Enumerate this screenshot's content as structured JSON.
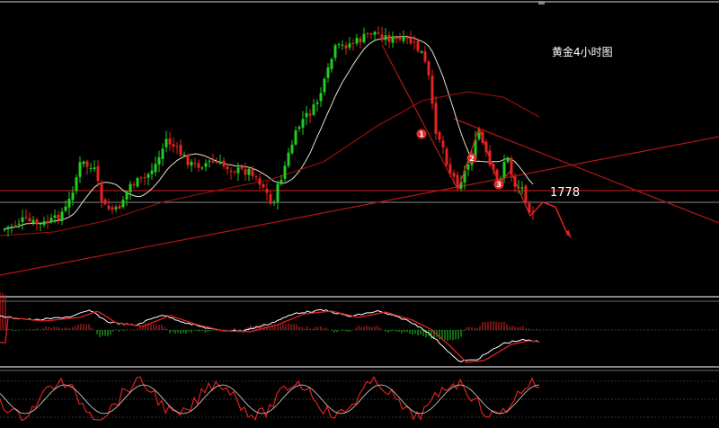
{
  "chart_data": {
    "type": "candlestick",
    "title": "黄金4小时图",
    "price_level_label": "1778",
    "price_level": 1778,
    "ylim": [
      1745,
      1835
    ],
    "colors": {
      "background": "#000000",
      "up_candle": "#22cc22",
      "down_candle": "#e62222",
      "ma_short": "#e8e0c8",
      "ma_long": "#a01010",
      "trendline": "#b01818",
      "hline": "#b01818",
      "neutral_hline": "#d8d8d8",
      "marker": "#e03030",
      "panel_border": "#d8d8d8",
      "macd_line": "#ffffff",
      "signal_line": "#e02020",
      "stoch_line": "#e02020"
    },
    "markers": [
      "1",
      "2",
      "3"
    ]
  }
}
